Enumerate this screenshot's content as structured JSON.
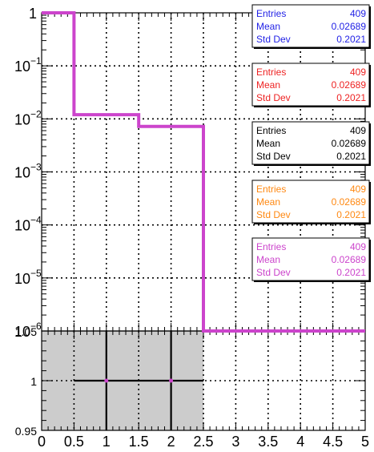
{
  "chart_data": [
    {
      "type": "line",
      "step": true,
      "log_y": true,
      "grid": true,
      "xlim": [
        0,
        5
      ],
      "ylim": [
        1e-06,
        1
      ],
      "bin_edges": [
        0,
        0.5,
        1,
        1.5,
        2,
        2.5,
        3,
        3.5,
        4,
        4.5,
        5
      ],
      "series": [
        {
          "color": "#cc44cc",
          "values": [
            1,
            0.012,
            0.012,
            0.0072,
            0.0072,
            1e-06,
            1e-06,
            1e-06,
            1e-06,
            1e-06
          ]
        }
      ],
      "y_tick_labels": [
        {
          "value": 1,
          "base": "1",
          "exp": ""
        },
        {
          "value": 0.1,
          "base": "10",
          "exp": "−1"
        },
        {
          "value": 0.01,
          "base": "10",
          "exp": "−2"
        },
        {
          "value": 0.001,
          "base": "10",
          "exp": "−3"
        },
        {
          "value": 0.0001,
          "base": "10",
          "exp": "−4"
        },
        {
          "value": 1e-05,
          "base": "10",
          "exp": "−5"
        },
        {
          "value": 1e-06,
          "base": "10",
          "exp": "−6"
        }
      ]
    },
    {
      "type": "scatter",
      "grid": true,
      "xlim": [
        0,
        5
      ],
      "ylim": [
        0.95,
        1.05
      ],
      "shaded_band": {
        "x": [
          0,
          2.5
        ],
        "y": [
          0.95,
          1.05
        ],
        "color": "#cccccc"
      },
      "points": [
        {
          "x": 1,
          "y": 1,
          "xerr": 0.5
        },
        {
          "x": 2,
          "y": 1,
          "xerr": 0.5
        }
      ],
      "point_color": "#cc44cc",
      "y_tick_labels": [
        {
          "value": 1.05,
          "text": "1.05"
        },
        {
          "value": 1,
          "text": "1"
        },
        {
          "value": 0.95,
          "text": "0.95"
        }
      ],
      "x_tick_labels": [
        "0",
        "0.5",
        "1",
        "1.5",
        "2",
        "2.5",
        "3",
        "3.5",
        "4",
        "4.5",
        "5"
      ]
    }
  ],
  "stat_boxes": [
    {
      "color": "#1f1fe6",
      "entries_label": "Entries",
      "entries": "409",
      "mean_label": "Mean",
      "mean": "0.02689",
      "std_label": "Std Dev",
      "std": "0.2021"
    },
    {
      "color": "#ee2222",
      "entries_label": "Entries",
      "entries": "409",
      "mean_label": "Mean",
      "mean": "0.02689",
      "std_label": "Std Dev",
      "std": "0.2021"
    },
    {
      "color": "#000000",
      "entries_label": "Entries",
      "entries": "409",
      "mean_label": "Mean",
      "mean": "0.02689",
      "std_label": "Std Dev",
      "std": "0.2021"
    },
    {
      "color": "#ff8811",
      "entries_label": "Entries",
      "entries": "409",
      "mean_label": "Mean",
      "mean": "0.02689",
      "std_label": "Std Dev",
      "std": "0.2021"
    },
    {
      "color": "#cc44cc",
      "entries_label": "Entries",
      "entries": "409",
      "mean_label": "Mean",
      "mean": "0.02689",
      "std_label": "Std Dev",
      "std": "0.2021"
    }
  ]
}
